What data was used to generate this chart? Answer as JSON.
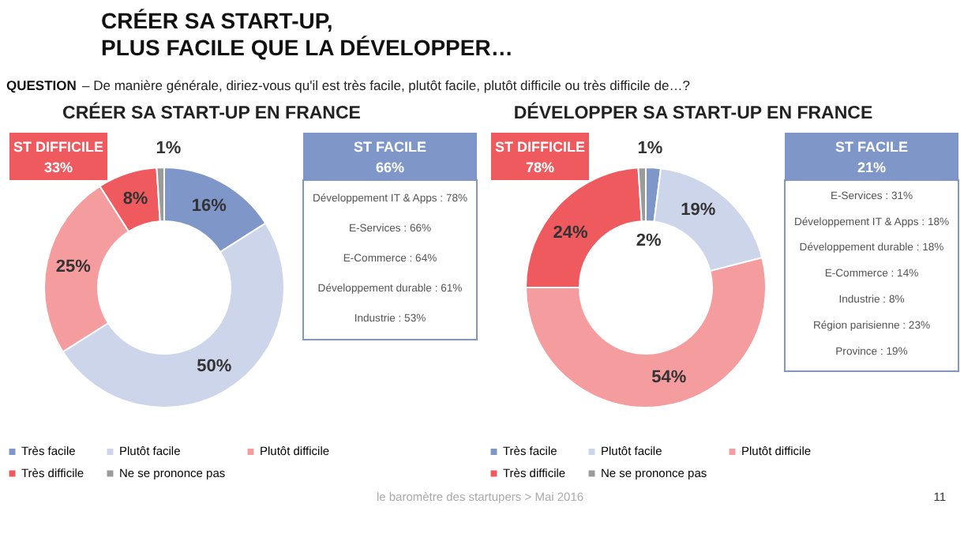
{
  "chart_data": [
    {
      "type": "donut",
      "title": "CRÉER SA START-UP EN FRANCE",
      "categories": [
        "Très facile",
        "Plutôt facile",
        "Plutôt difficile",
        "Très difficile",
        "Ne se prononce pas"
      ],
      "values": [
        16,
        50,
        25,
        8,
        1
      ],
      "colors": [
        "#7f96c8",
        "#cdd5ea",
        "#f59c9f",
        "#ee5a5e",
        "#9b9b9b"
      ],
      "value_labels": [
        "16%",
        "50%",
        "25%",
        "8%",
        "1%"
      ],
      "legend": "bottom",
      "annotations": [
        "CRÉER SA START-UP,",
        "PLUS FACILE QUE LA DÉVELOPPER…",
        "QUESTION",
        "– De manière générale, diriez-vous qu'il est très facile, plutôt facile, plutôt difficile ou très difficile de…?",
        "ST DIFFICILE",
        "33%",
        "ST FACILE",
        "66%",
        "Développement IT & Apps : 78%",
        "E-Services : 66%",
        "E-Commerce : 64%",
        "Développement durable : 61%",
        "Industrie : 53%"
      ]
    },
    {
      "type": "donut",
      "title": "DÉVELOPPER SA START-UP EN FRANCE",
      "categories": [
        "Très facile",
        "Plutôt facile",
        "Plutôt difficile",
        "Très difficile",
        "Ne se prononce pas"
      ],
      "values": [
        2,
        19,
        54,
        24,
        1
      ],
      "colors": [
        "#7f96c8",
        "#cdd5ea",
        "#f59c9f",
        "#ee5a5e",
        "#9b9b9b"
      ],
      "value_labels": [
        "2%",
        "19%",
        "54%",
        "24%",
        "1%"
      ],
      "legend": "bottom",
      "annotations": [
        "ST DIFFICILE",
        "78%",
        "ST FACILE",
        "21%",
        "E-Services : 31%",
        "Développement IT & Apps : 18%",
        "Développement durable : 18%",
        "E-Commerce : 14%",
        "Industrie : 8%",
        "Région parisienne : 23%",
        "Province : 19%",
        "le baromètre des startupers > Mai 2016",
        "11"
      ]
    }
  ]
}
